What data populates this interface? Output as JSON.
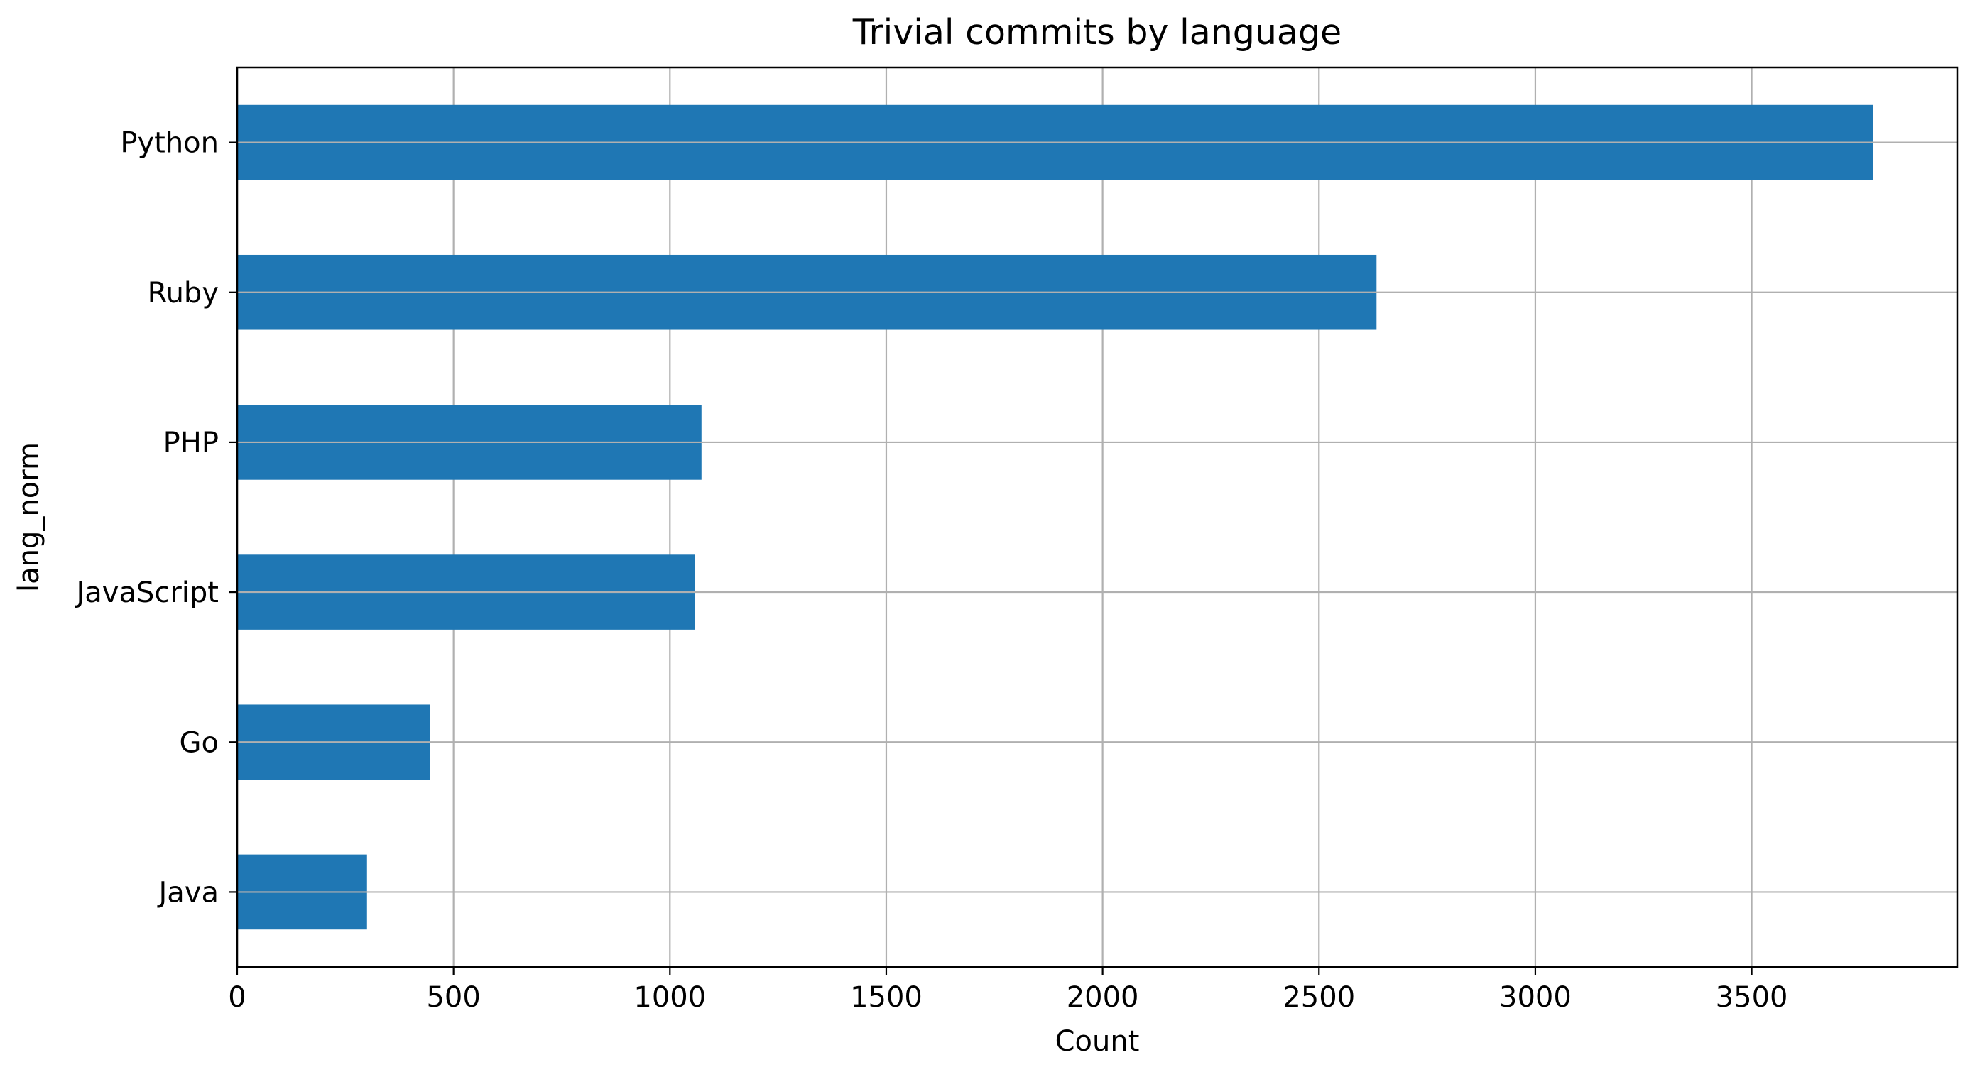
{
  "chart_data": {
    "type": "bar",
    "orientation": "horizontal",
    "title": "Trivial commits by language",
    "xlabel": "Count",
    "ylabel": "lang_norm",
    "categories": [
      "Java",
      "Go",
      "JavaScript",
      "PHP",
      "Ruby",
      "Python"
    ],
    "values": [
      300,
      445,
      1058,
      1073,
      2633,
      3780
    ],
    "xlim": [
      0,
      3975
    ],
    "xticks": [
      0,
      500,
      1000,
      1500,
      2000,
      2500,
      3000,
      3500
    ],
    "grid": true,
    "bar_color": "#1f77b4"
  }
}
